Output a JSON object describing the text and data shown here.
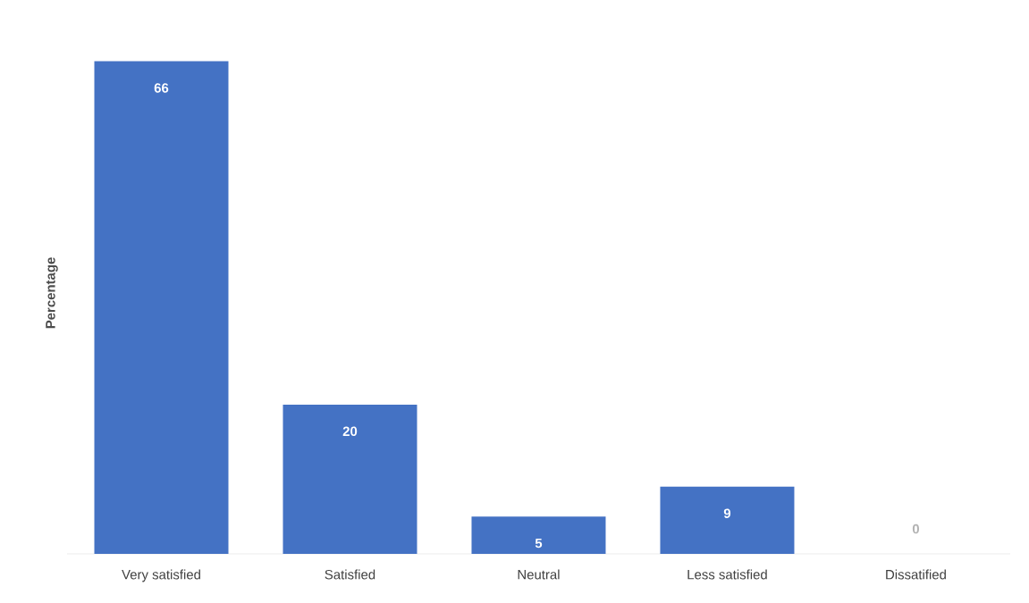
{
  "chart_data": {
    "type": "bar",
    "ylabel": "Percentage",
    "categories": [
      "Very satisfied",
      "Satisfied",
      "Neutral",
      "Less satisfied",
      "Dissatified"
    ],
    "values": [
      66,
      20,
      5,
      9,
      0
    ],
    "color": "#4472c4",
    "data_labels": true
  }
}
